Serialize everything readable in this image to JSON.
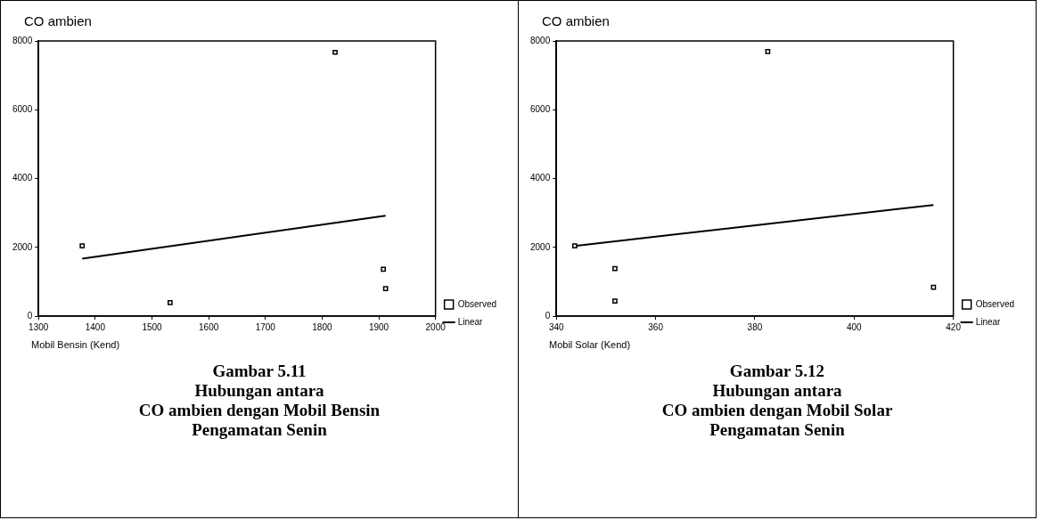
{
  "chart_data": [
    {
      "type": "scatter",
      "title": "Gambar 5.11\nHubungan antara\nCO ambien dengan Mobil Bensin\nPengamatan Senin",
      "ylabel": "CO ambien",
      "xlabel": "Mobil Bensin (Kend)",
      "xlim": [
        1300,
        2000
      ],
      "xticks": [
        1300,
        1400,
        1500,
        1600,
        1700,
        1800,
        1900,
        2000
      ],
      "ylim": [
        0,
        8000
      ],
      "yticks": [
        0,
        2000,
        4000,
        6000,
        8000
      ],
      "grid": false,
      "legend": "right",
      "series": [
        {
          "name": "Observed",
          "marker": "square",
          "color": "#000000",
          "x": [
            1377,
            1532,
            1823,
            1908,
            1912
          ],
          "values": [
            2040,
            390,
            7670,
            1360,
            800
          ]
        },
        {
          "name": "Linear",
          "type": "line",
          "marker": "none",
          "color": "#000000",
          "x": [
            1377,
            1912
          ],
          "values": [
            1670,
            2920
          ]
        }
      ]
    },
    {
      "type": "scatter",
      "title": "Gambar 5.12\nHubungan antara\nCO ambien dengan Mobil Solar\nPengamatan Senin",
      "ylabel": "CO ambien",
      "xlabel": "Mobil Solar (Kend)",
      "xlim": [
        340,
        420
      ],
      "xticks": [
        340,
        360,
        380,
        400,
        420
      ],
      "ylim": [
        0,
        8000
      ],
      "yticks": [
        0,
        2000,
        4000,
        6000,
        8000
      ],
      "grid": false,
      "legend": "right",
      "series": [
        {
          "name": "Observed",
          "marker": "square",
          "color": "#000000",
          "x": [
            343.7,
            351.8,
            351.8,
            382.6,
            416
          ],
          "values": [
            2040,
            1380,
            440,
            7690,
            840
          ]
        },
        {
          "name": "Linear",
          "type": "line",
          "marker": "none",
          "color": "#000000",
          "x": [
            343.7,
            416
          ],
          "values": [
            2040,
            3230
          ]
        }
      ]
    }
  ]
}
